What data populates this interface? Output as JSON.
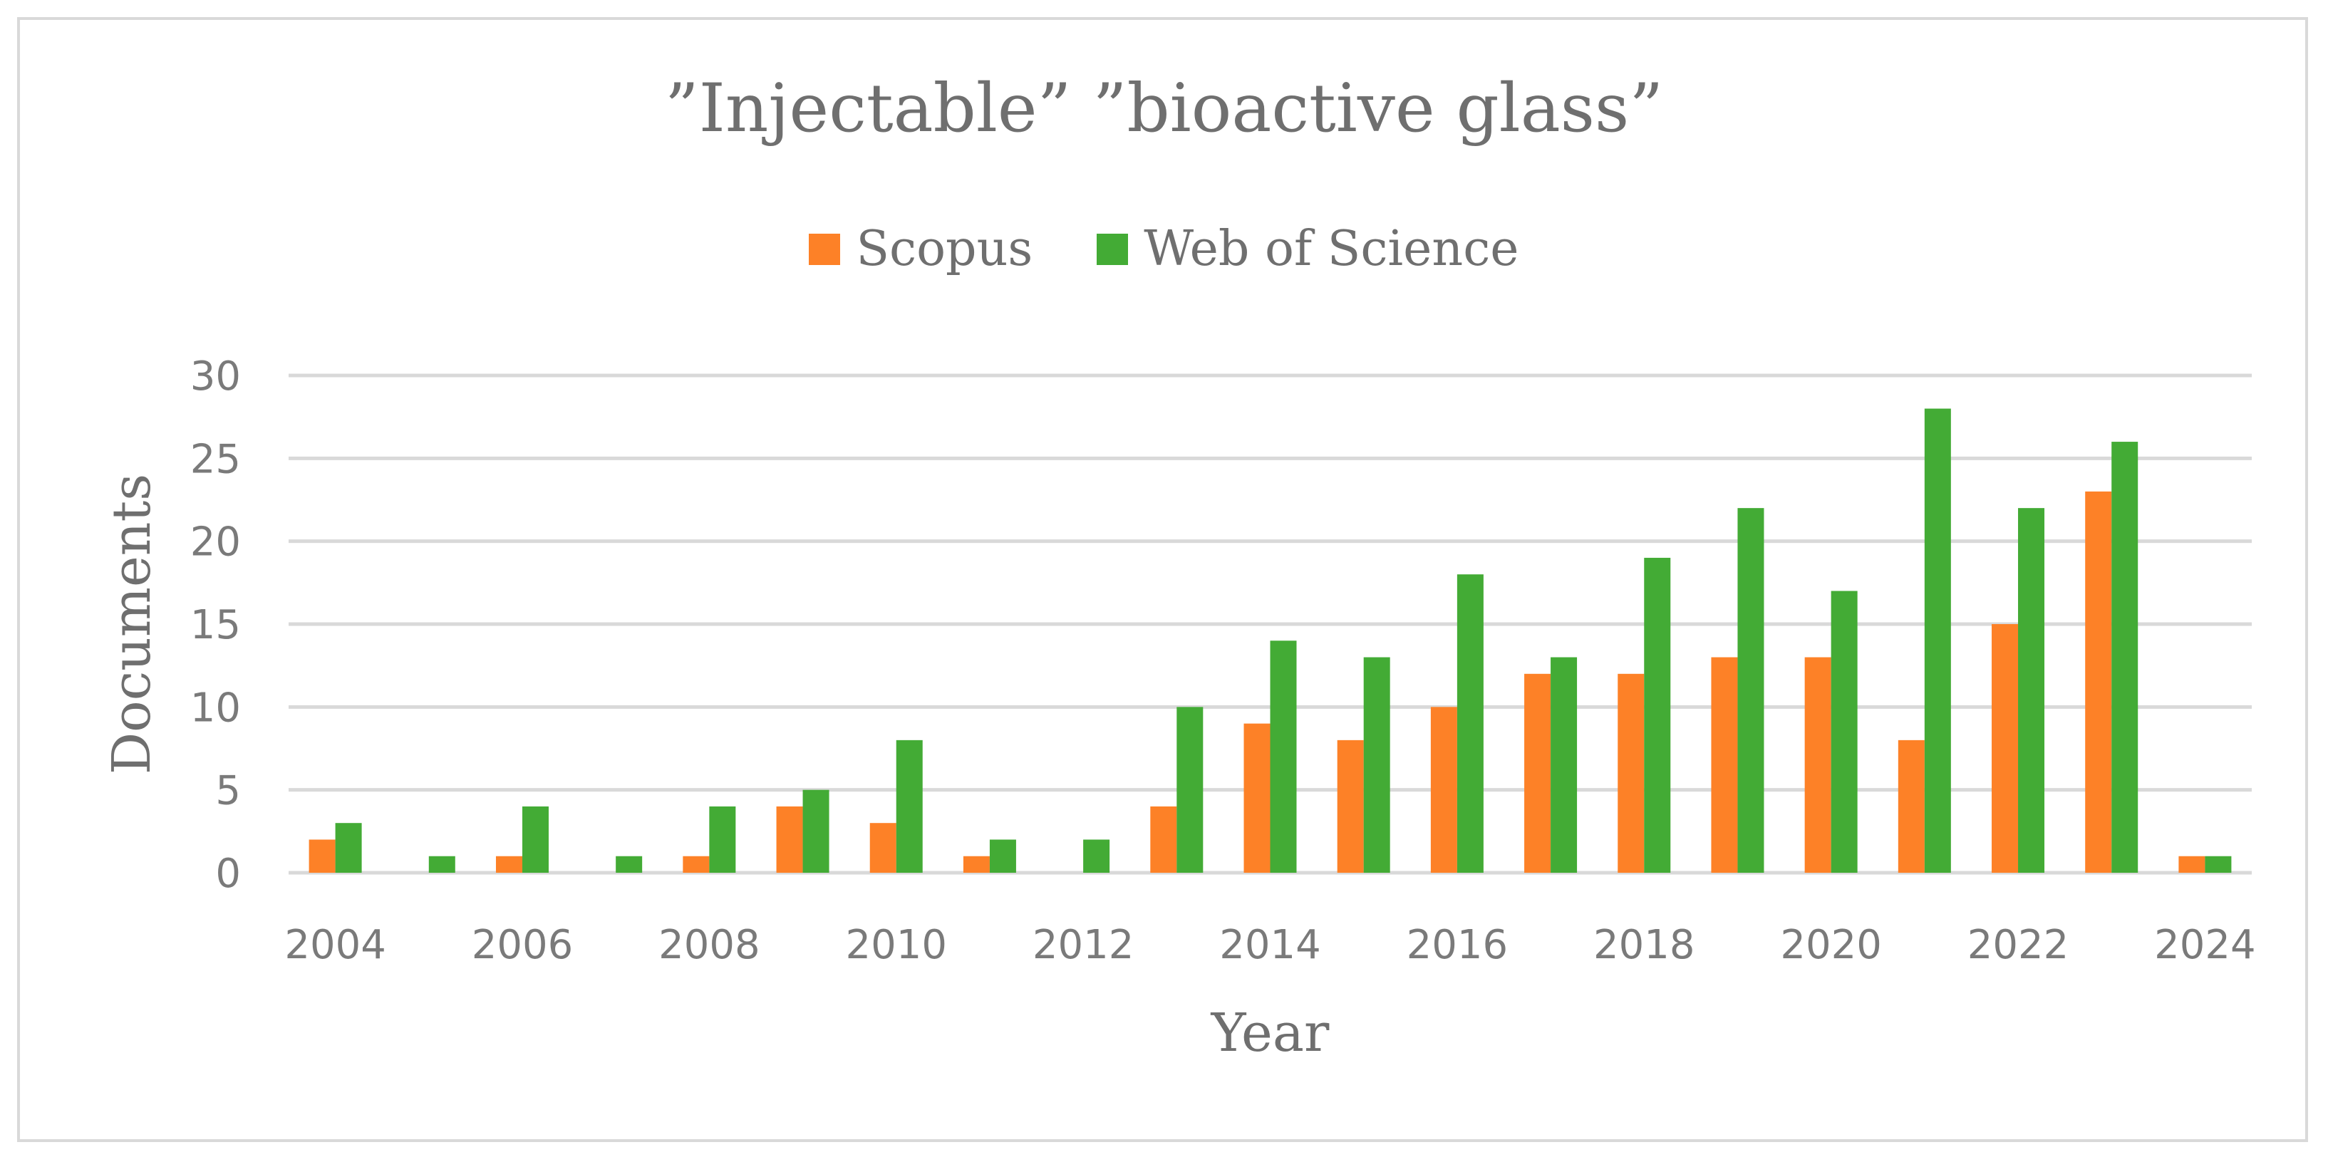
{
  "chart_data": {
    "type": "bar",
    "title": "”Injectable” ”bioactive glass”",
    "xlabel": "Year",
    "ylabel": "Documents",
    "ylim": [
      0,
      30
    ],
    "yticks": [
      0,
      5,
      10,
      15,
      20,
      25,
      30
    ],
    "grid": true,
    "legend_position": "top-center",
    "categories": [
      "2004",
      "2005",
      "2006",
      "2007",
      "2008",
      "2009",
      "2010",
      "2011",
      "2012",
      "2013",
      "2014",
      "2015",
      "2016",
      "2017",
      "2018",
      "2019",
      "2020",
      "2021",
      "2022",
      "2023",
      "2024"
    ],
    "x_tick_labels": [
      "2004",
      "2006",
      "2008",
      "2010",
      "2012",
      "2014",
      "2016",
      "2018",
      "2020",
      "2022",
      "2024"
    ],
    "series": [
      {
        "name": "Scopus",
        "color": "#fd8127",
        "values": [
          2,
          0,
          1,
          0,
          1,
          4,
          3,
          1,
          0,
          4,
          9,
          8,
          10,
          12,
          12,
          13,
          13,
          8,
          15,
          23,
          1
        ]
      },
      {
        "name": "Web of Science",
        "color": "#43ab35",
        "values": [
          3,
          1,
          4,
          1,
          4,
          5,
          8,
          2,
          2,
          10,
          14,
          13,
          18,
          13,
          19,
          22,
          17,
          28,
          22,
          26,
          1
        ]
      }
    ]
  }
}
